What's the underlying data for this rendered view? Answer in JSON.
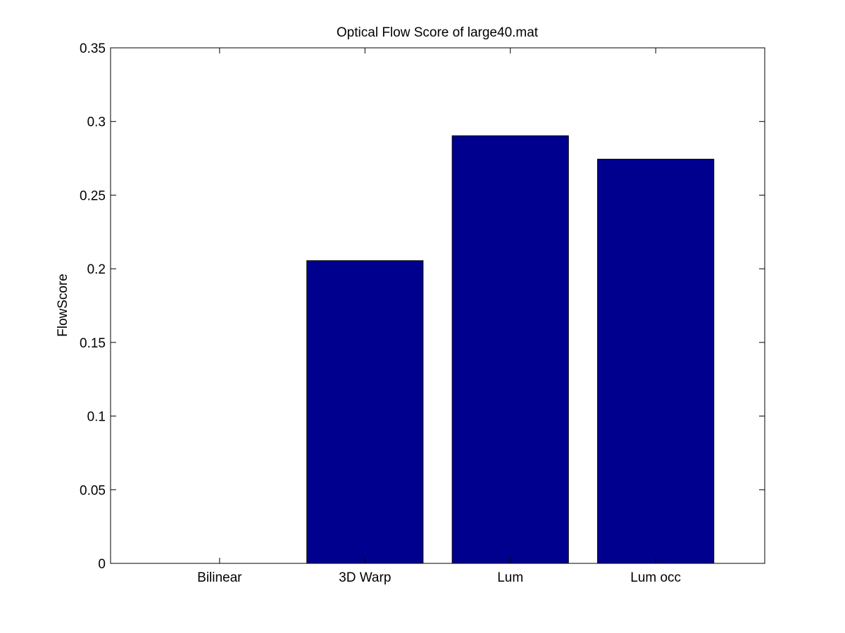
{
  "chart_data": {
    "type": "bar",
    "title": "Optical Flow Score of large40.mat",
    "xlabel": "",
    "ylabel": "FlowScore",
    "categories": [
      "Bilinear",
      "3D Warp",
      "Lum",
      "Lum occ"
    ],
    "values": [
      0,
      0.2055,
      0.2903,
      0.2744
    ],
    "ylim": [
      0,
      0.35
    ],
    "yticks": [
      "0",
      "0.05",
      "0.1",
      "0.15",
      "0.2",
      "0.25",
      "0.3",
      "0.35"
    ],
    "grid": false,
    "bar_color": "#00008f",
    "bar_edge_color": "#000000"
  }
}
